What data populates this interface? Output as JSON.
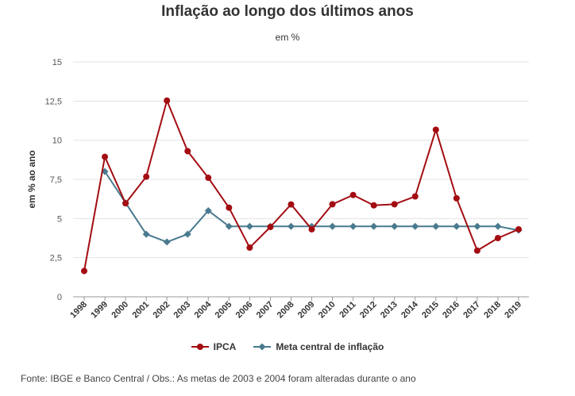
{
  "chart_data": {
    "type": "line",
    "title": "Inflação ao longo dos últimos anos",
    "subtitle": "em %",
    "ylabel": "em % ao ano",
    "xlabel": "",
    "ylim": [
      0,
      15
    ],
    "yticks": [
      0,
      2.5,
      5,
      7.5,
      10,
      12.5,
      15
    ],
    "ytick_labels": [
      "0",
      "2,5",
      "5",
      "7,5",
      "10",
      "12,5",
      "15"
    ],
    "categories": [
      "1998",
      "1999",
      "2000",
      "2001",
      "2002",
      "2003",
      "2004",
      "2005",
      "2006",
      "2007",
      "2008",
      "2009",
      "2010",
      "2011",
      "2012",
      "2013",
      "2014",
      "2015",
      "2016",
      "2017",
      "2018",
      "2019"
    ],
    "grid": "horizontal",
    "legend_position": "bottom",
    "series": [
      {
        "name": "IPCA",
        "color": "#a30d12",
        "marker": "circle",
        "values": [
          1.65,
          8.94,
          5.97,
          7.67,
          12.53,
          9.3,
          7.6,
          5.69,
          3.14,
          4.46,
          5.9,
          4.31,
          5.91,
          6.5,
          5.84,
          5.91,
          6.41,
          10.67,
          6.29,
          2.95,
          3.75,
          4.31
        ]
      },
      {
        "name": "Meta central de inflação",
        "color": "#4a7a8f",
        "marker": "diamond",
        "values": [
          null,
          8.0,
          6.0,
          4.0,
          3.5,
          4.0,
          5.5,
          4.5,
          4.5,
          4.5,
          4.5,
          4.5,
          4.5,
          4.5,
          4.5,
          4.5,
          4.5,
          4.5,
          4.5,
          4.5,
          4.5,
          4.25
        ]
      }
    ]
  },
  "footer": {
    "source": "Fonte: IBGE e Banco Central / Obs.: As metas de 2003 e 2004 foram alteradas durante o ano"
  }
}
